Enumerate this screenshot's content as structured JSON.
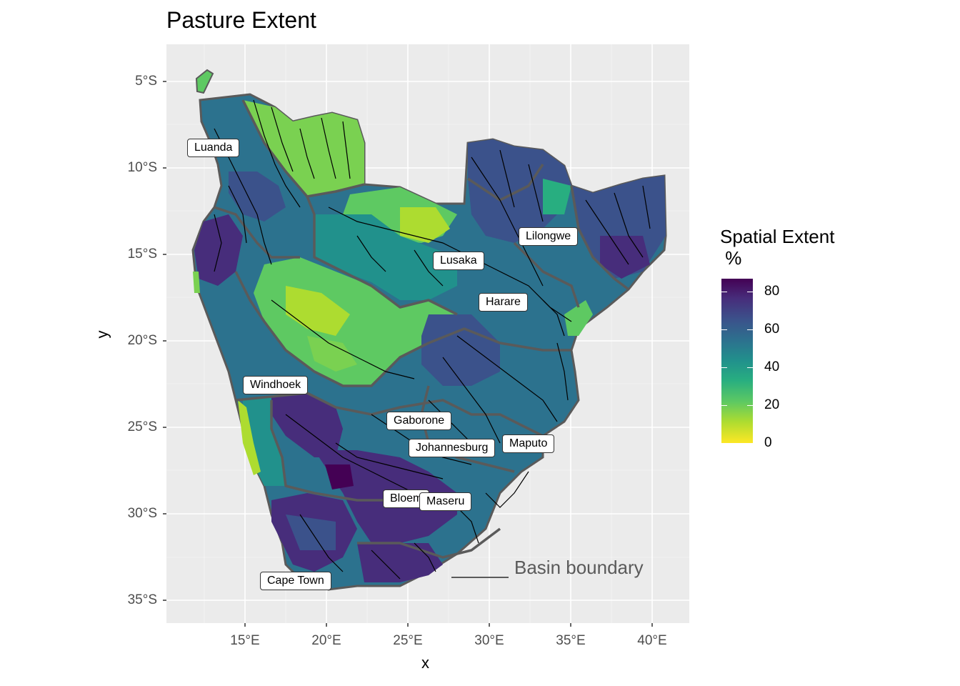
{
  "title": "Pasture Extent",
  "axes": {
    "x_title": "x",
    "y_title": "y",
    "x_ticks": [
      "15°E",
      "20°E",
      "25°E",
      "30°E",
      "35°E",
      "40°E"
    ],
    "y_ticks": [
      "5°S",
      "10°S",
      "15°S",
      "20°S",
      "25°S",
      "30°S",
      "35°S"
    ]
  },
  "legend": {
    "title": "Spatial Extent\n %",
    "ticks": [
      "80",
      "60",
      "40",
      "20",
      "0"
    ],
    "colors": [
      "#440154",
      "#3b528b",
      "#21918c",
      "#5ec962",
      "#fde725"
    ]
  },
  "cities": [
    {
      "name": "Luanda"
    },
    {
      "name": "Lilongwe"
    },
    {
      "name": "Lusaka"
    },
    {
      "name": "Harare"
    },
    {
      "name": "Windhoek"
    },
    {
      "name": "Gaborone"
    },
    {
      "name": "Maputo"
    },
    {
      "name": "Johannesburg"
    },
    {
      "name": "Bloem"
    },
    {
      "name": "Maseru"
    },
    {
      "name": "Cape Town"
    }
  ],
  "annotation": {
    "basin_boundary": "Basin boundary"
  },
  "colors": {
    "panel_bg": "#ebebeb",
    "grid": "#ffffff",
    "boundary": "#5a5a5a",
    "river": "#000000"
  }
}
